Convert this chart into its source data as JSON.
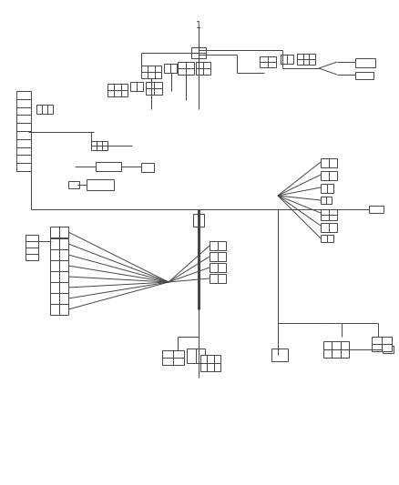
{
  "line_color": "#444444",
  "lw": 0.7,
  "fig_w": 4.38,
  "fig_h": 5.33,
  "dpi": 100,
  "label_1": "1"
}
